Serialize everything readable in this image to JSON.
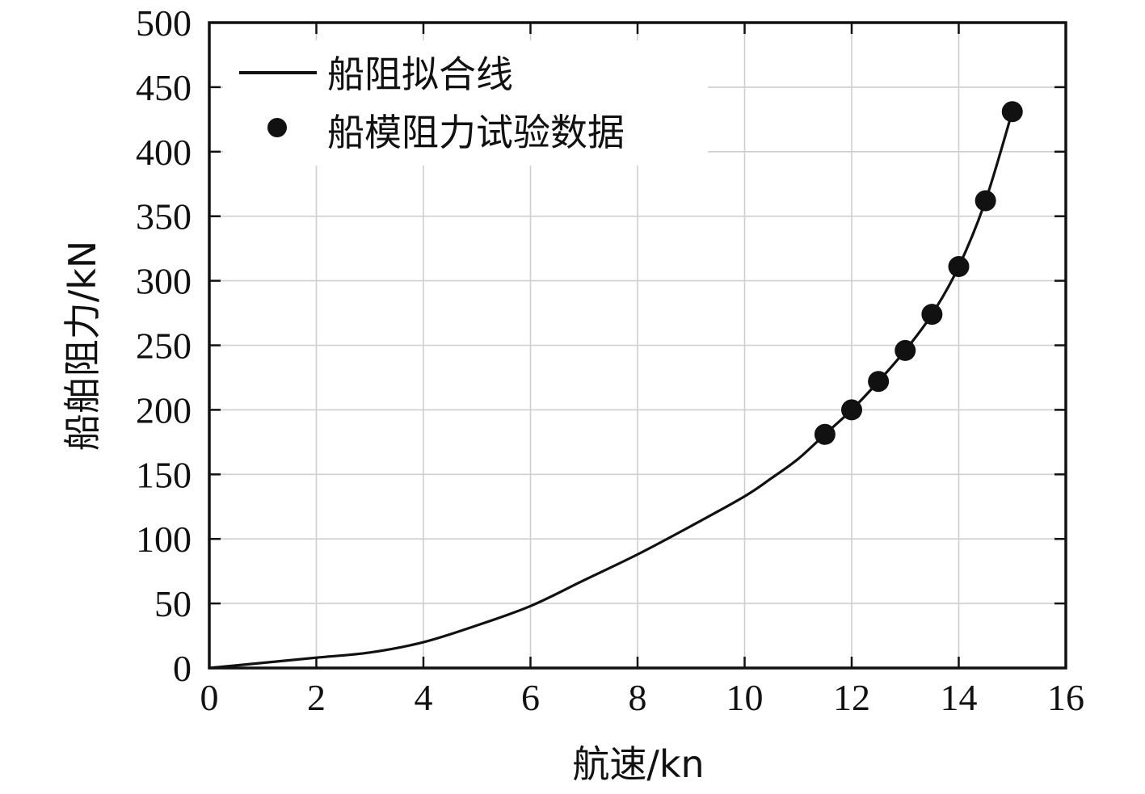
{
  "chart_data": {
    "type": "line",
    "title": "",
    "xlabel": "航速/kn",
    "ylabel": "船舶阻力/kN",
    "xlim": [
      0,
      16
    ],
    "ylim": [
      0,
      500
    ],
    "xticks": [
      "0",
      "2",
      "4",
      "6",
      "8",
      "10",
      "12",
      "14",
      "16"
    ],
    "yticks": [
      "0",
      "50",
      "100",
      "150",
      "200",
      "250",
      "300",
      "350",
      "400",
      "450",
      "500"
    ],
    "grid": true,
    "legend_position": "top-left",
    "series": [
      {
        "name": "船阻拟合线",
        "kind": "line",
        "color": "#111111",
        "x": [
          0,
          1,
          2,
          3,
          4,
          5,
          6,
          7,
          8,
          9,
          10,
          10.5,
          11,
          11.5,
          12,
          12.5,
          13,
          13.5,
          14,
          14.5,
          15
        ],
        "y": [
          0,
          4,
          8,
          12,
          20,
          33,
          48,
          68,
          88,
          110,
          133,
          147,
          162,
          181,
          200,
          222,
          246,
          274,
          311,
          362,
          431
        ]
      },
      {
        "name": "船模阻力试验数据",
        "kind": "scatter",
        "color": "#111111",
        "x": [
          11.5,
          12,
          12.5,
          13,
          13.5,
          14,
          14.5,
          15
        ],
        "y": [
          181,
          200,
          222,
          246,
          274,
          311,
          362,
          431
        ]
      }
    ]
  }
}
